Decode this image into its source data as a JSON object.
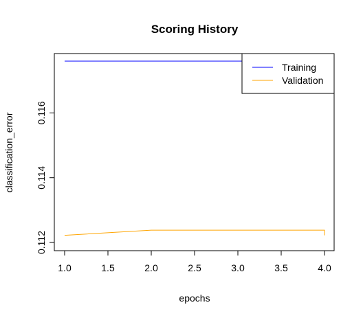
{
  "chart_data": {
    "type": "line",
    "title": "Scoring History",
    "xlabel": "epochs",
    "ylabel": "classification_error",
    "xlim": [
      1.0,
      4.0
    ],
    "ylim": [
      0.112,
      0.1176
    ],
    "xticks": [
      "1.0",
      "1.5",
      "2.0",
      "2.5",
      "3.0",
      "3.5",
      "4.0"
    ],
    "yticks": [
      "0.112",
      "0.114",
      "0.116"
    ],
    "legend_position": "top-right",
    "series": [
      {
        "name": "Training",
        "color": "#0000ff",
        "x": [
          1.0,
          2.0,
          3.0,
          4.0
        ],
        "y": [
          0.1176,
          0.1176,
          0.1176,
          0.1176
        ]
      },
      {
        "name": "Validation",
        "color": "#ffa500",
        "x": [
          1.0,
          2.0,
          3.0,
          4.0,
          4.0
        ],
        "y": [
          0.11222,
          0.11238,
          0.11238,
          0.11238,
          0.11222
        ]
      }
    ]
  }
}
